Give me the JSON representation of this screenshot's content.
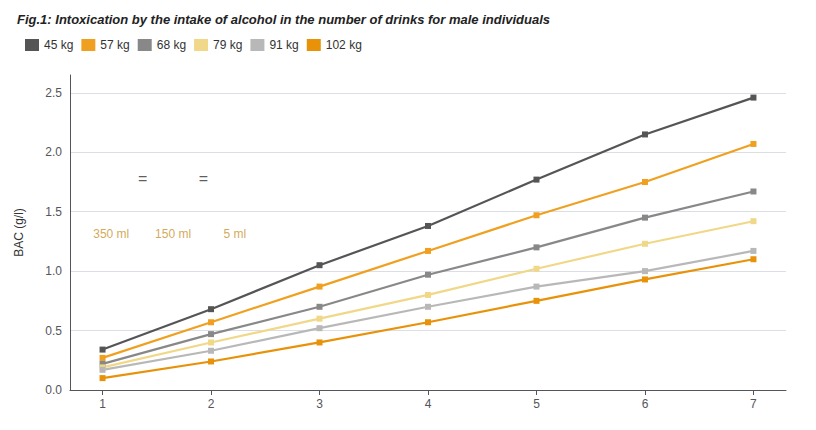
{
  "chart_data": {
    "type": "line",
    "title": "Fig.1: Intoxication by the intake of alcohol in the number of drinks for male individuals",
    "ylabel": "BAC (g/l)",
    "x": [
      1,
      2,
      3,
      4,
      5,
      6,
      7
    ],
    "xlim": [
      0.7,
      7.3
    ],
    "xticks": [
      1,
      2,
      3,
      4,
      5,
      6,
      7
    ],
    "ylim": [
      0.0,
      2.65
    ],
    "yticks": [
      {
        "value": 0.0,
        "label": "0.0"
      },
      0.5,
      {
        "value": 1.0,
        "label": "1.0"
      },
      1.5,
      {
        "value": 2.0,
        "label": "2.0"
      },
      2.5
    ],
    "grid": true,
    "legend": "upper left",
    "marker": "square",
    "series": [
      {
        "name": "45 kg",
        "color": "#555555",
        "values": [
          0.34,
          0.68,
          1.05,
          1.38,
          1.77,
          2.15,
          2.46
        ]
      },
      {
        "name": "57 kg",
        "color": "#f0a020",
        "values": [
          0.27,
          0.57,
          0.87,
          1.17,
          1.47,
          1.75,
          2.07
        ]
      },
      {
        "name": "68 kg",
        "color": "#888888",
        "values": [
          0.22,
          0.47,
          0.7,
          0.97,
          1.2,
          1.45,
          1.67
        ]
      },
      {
        "name": "79 kg",
        "color": "#f0d888",
        "values": [
          0.19,
          0.4,
          0.6,
          0.8,
          1.02,
          1.23,
          1.42
        ]
      },
      {
        "name": "91 kg",
        "color": "#b8b8b8",
        "values": [
          0.17,
          0.33,
          0.52,
          0.7,
          0.87,
          1.0,
          1.17
        ]
      },
      {
        "name": "102 kg",
        "color": "#e8920a",
        "values": [
          0.1,
          0.24,
          0.4,
          0.57,
          0.75,
          0.93,
          1.1
        ]
      }
    ],
    "annotations": [
      {
        "text": "350 ml",
        "x": 1.08,
        "y": 1.38,
        "color": "#c8922a"
      },
      {
        "text": "150 ml",
        "x": 1.65,
        "y": 1.38,
        "color": "#c8922a"
      },
      {
        "text": "5 ml",
        "x": 2.22,
        "y": 1.38,
        "color": "#c8922a"
      },
      {
        "text": "=",
        "x": 1.37,
        "y": 1.78,
        "color": "#333333"
      },
      {
        "text": "=",
        "x": 1.93,
        "y": 1.78,
        "color": "#333333"
      }
    ]
  }
}
